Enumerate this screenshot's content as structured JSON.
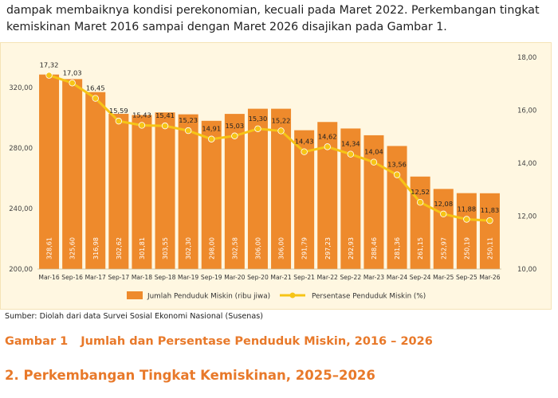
{
  "intro": {
    "line1": "dampak membaiknya kondisi perekonomian, kecuali pada Maret 2022. Perkembangan tingkat",
    "line2": "kemiskinan Maret 2016 sampai dengan Maret 2026 disajikan pada Gambar 1."
  },
  "source": "Sumber: Diolah dari data Survei Sosial Ekonomi Nasional (Susenas)",
  "caption": {
    "number": "Gambar 1",
    "text": "Jumlah dan Persentase Penduduk Miskin, 2016 – 2026"
  },
  "section_heading": "2. Perkembangan Tingkat Kemiskinan, 2025–2026",
  "colors": {
    "bar": "#ee8a2c",
    "line": "#f6c416",
    "background": "#fff7e1",
    "accent_text": "#e8792a"
  },
  "chart_data": {
    "type": "bar+line",
    "categories": [
      "Mar-16",
      "Sep-16",
      "Mar-17",
      "Sep-17",
      "Mar-18",
      "Sep-18",
      "Mar-19",
      "Sep-19",
      "Mar-20",
      "Sep-20",
      "Mar-21",
      "Sep-21",
      "Mar-22",
      "Sep-22",
      "Mar-23",
      "Mar-24",
      "Sep-24",
      "Mar-25",
      "Sep-25",
      "Mar-26"
    ],
    "series": [
      {
        "name": "Jumlah Penduduk Miskin (ribu jiwa)",
        "type": "bar",
        "axis": "left",
        "values": [
          328.61,
          325.6,
          316.98,
          302.62,
          301.81,
          303.55,
          302.3,
          298.0,
          302.58,
          306.0,
          306.0,
          291.79,
          297.23,
          292.93,
          288.46,
          281.36,
          261.15,
          252.97,
          250.19,
          250.11
        ],
        "labels": [
          "328,61",
          "325,60",
          "316,98",
          "302,62",
          "301,81",
          "303,55",
          "302,30",
          "298,00",
          "302,58",
          "306,00",
          "306,00",
          "291,79",
          "297,23",
          "292,93",
          "288,46",
          "281,36",
          "261,15",
          "252,97",
          "250,19",
          "250,11"
        ]
      },
      {
        "name": "Persentase Penduduk Miskin (%)",
        "type": "line",
        "axis": "right",
        "values": [
          17.32,
          17.03,
          16.45,
          15.59,
          15.43,
          15.41,
          15.23,
          14.91,
          15.03,
          15.3,
          15.22,
          14.43,
          14.62,
          14.34,
          14.04,
          13.56,
          12.52,
          12.08,
          11.88,
          11.83
        ],
        "labels": [
          "17,32",
          "17,03",
          "16,45",
          "15,59",
          "15,43",
          "15,41",
          "15,23",
          "14,91",
          "15,03",
          "15,30",
          "15,22",
          "14,43",
          "14,62",
          "14,34",
          "14,04",
          "13,56",
          "12,52",
          "12,08",
          "11,88",
          "11,83"
        ]
      }
    ],
    "y_left": {
      "lim": [
        200,
        340
      ],
      "ticks": [
        200,
        240,
        280,
        320
      ],
      "tick_labels": [
        "200,00",
        "240,00",
        "280,00",
        "320,00"
      ]
    },
    "y_right": {
      "lim": [
        10,
        18
      ],
      "ticks": [
        10,
        12,
        14,
        16,
        18
      ],
      "tick_labels": [
        "10,00",
        "12,00",
        "14,00",
        "16,00",
        "18,00"
      ]
    },
    "grid": false,
    "legend_position": "bottom"
  }
}
